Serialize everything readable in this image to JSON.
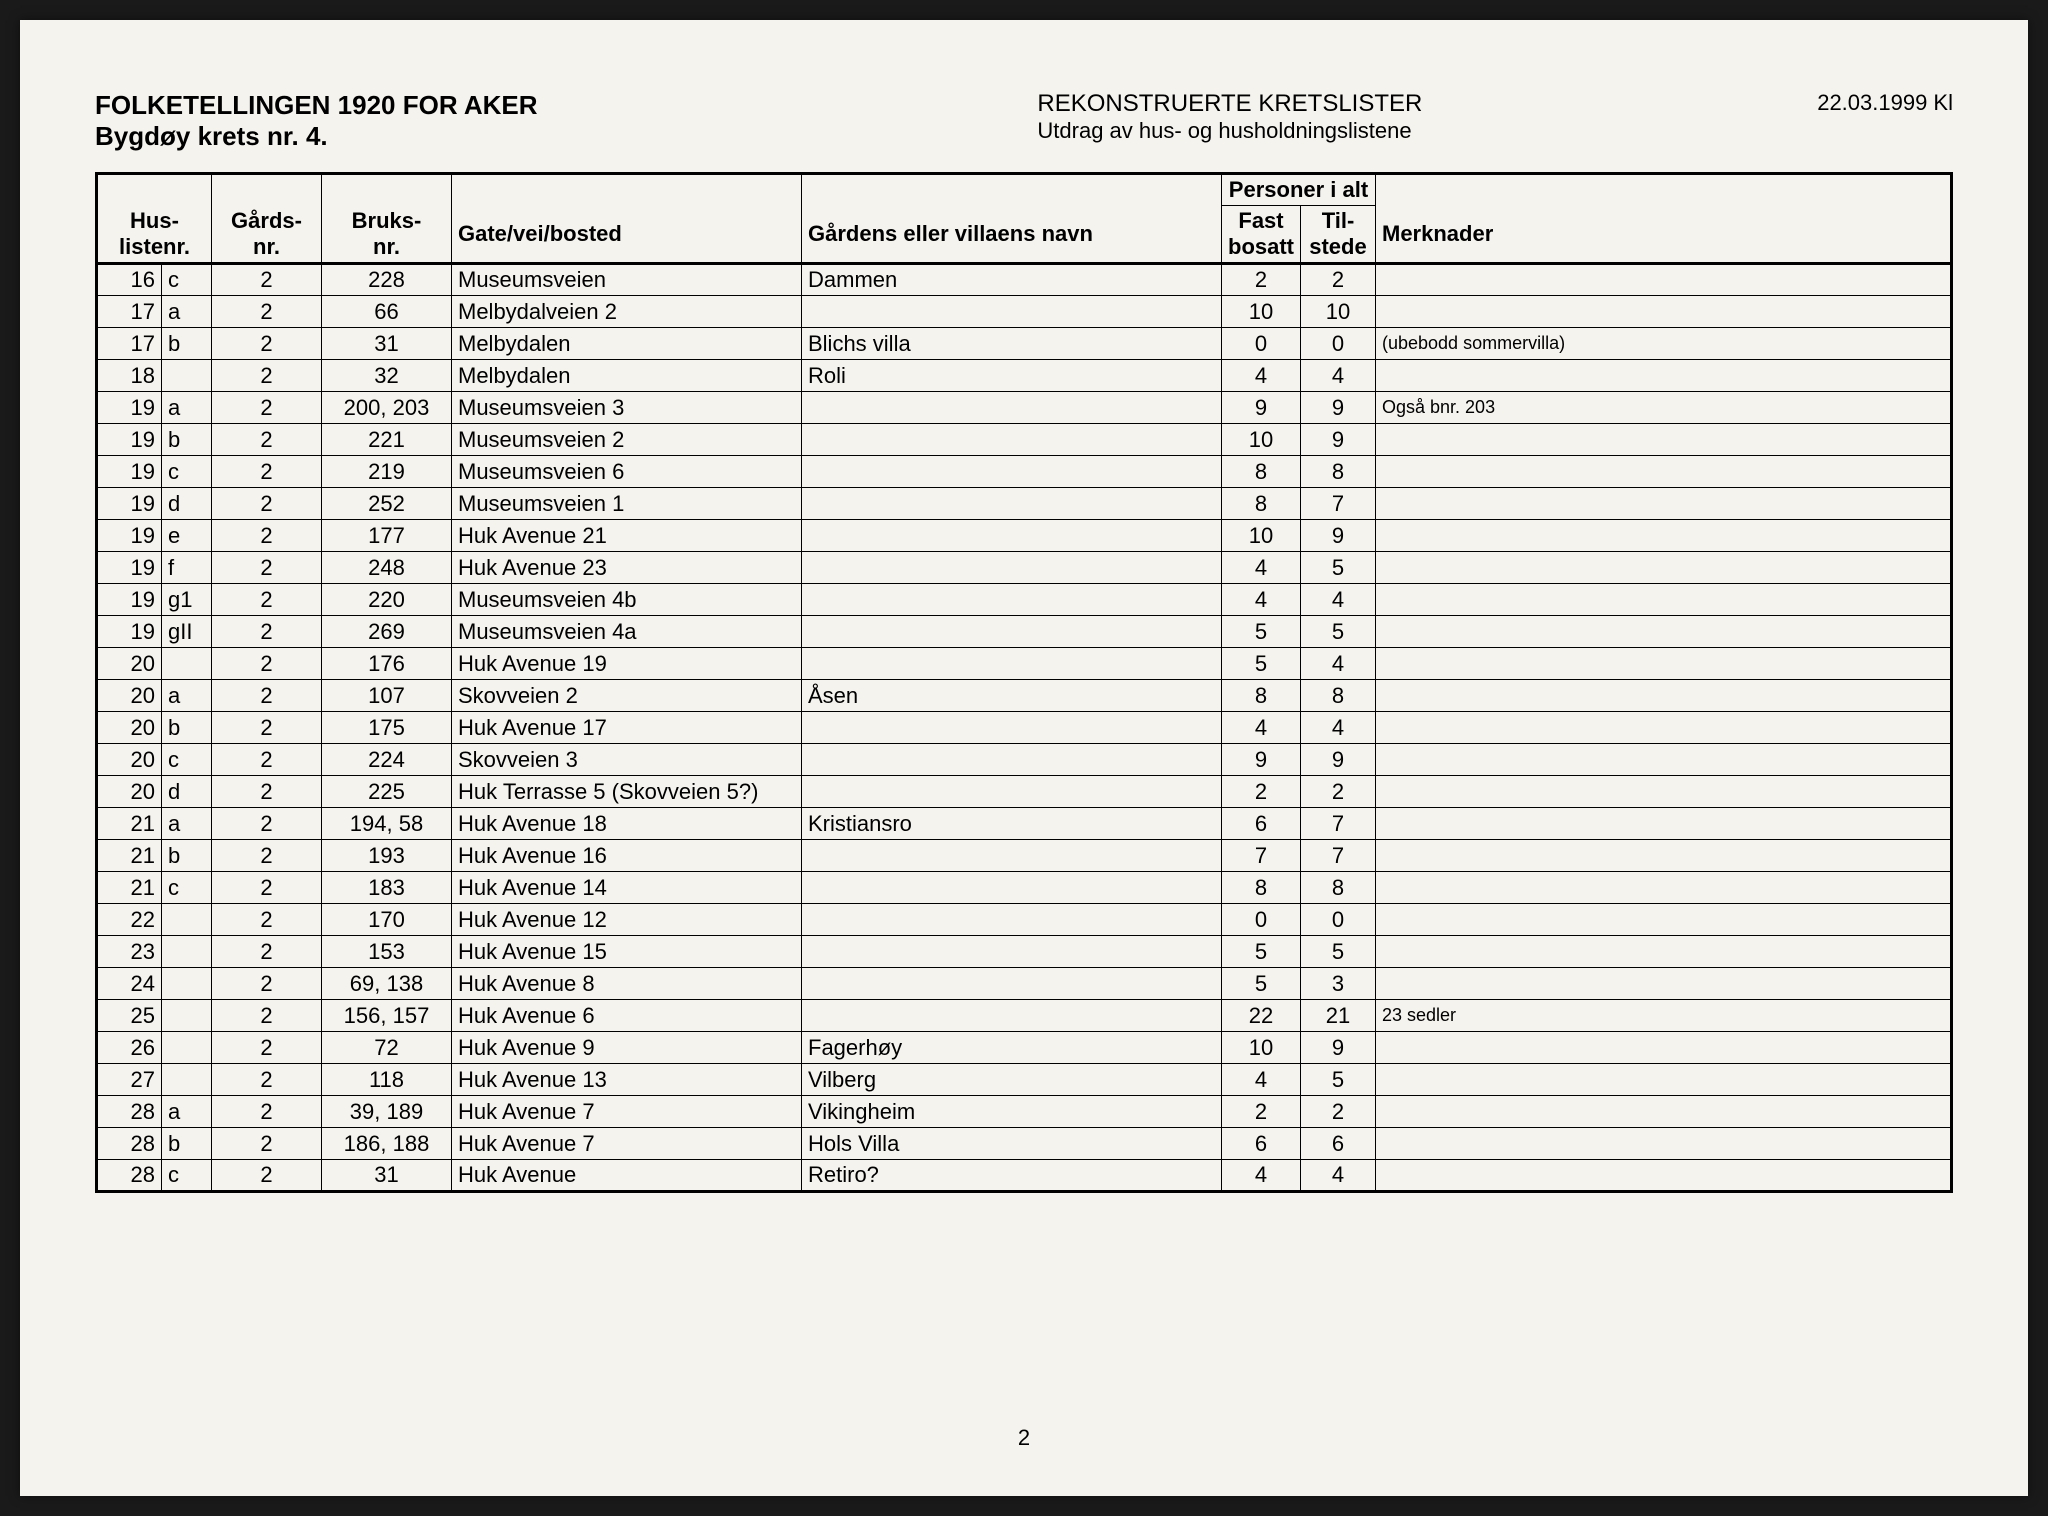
{
  "header": {
    "title_line1": "FOLKETELLINGEN 1920 FOR AKER",
    "title_line2": "Bygdøy krets nr. 4.",
    "center_line1": "REKONSTRUERTE KRETSLISTER",
    "center_line2": "Utdrag av hus- og husholdningslistene",
    "date": "22.03.1999 Kl"
  },
  "columns": {
    "huslistenr": "Hus-\nlistenr.",
    "gardsnr": "Gårds-\nnr.",
    "bruksnr": "Bruks-\nnr.",
    "gate": "Gate/vei/bosted",
    "gardnavn": "Gårdens eller villaens navn",
    "personer": "Personer i alt",
    "fast": "Fast\nbosatt",
    "til": "Til-\nstede",
    "merk": "Merknader"
  },
  "rows": [
    {
      "num": "16",
      "sub": "c",
      "gards": "2",
      "bruks": "228",
      "gate": "Museumsveien",
      "gardnavn": "Dammen",
      "fast": "2",
      "til": "2",
      "merk": ""
    },
    {
      "num": "17",
      "sub": "a",
      "gards": "2",
      "bruks": "66",
      "gate": "Melbydalveien 2",
      "gardnavn": "",
      "fast": "10",
      "til": "10",
      "merk": ""
    },
    {
      "num": "17",
      "sub": "b",
      "gards": "2",
      "bruks": "31",
      "gate": "Melbydalen",
      "gardnavn": "Blichs villa",
      "fast": "0",
      "til": "0",
      "merk": "(ubebodd sommervilla)",
      "merk_small": true
    },
    {
      "num": "18",
      "sub": "",
      "gards": "2",
      "bruks": "32",
      "gate": "Melbydalen",
      "gardnavn": "Roli",
      "fast": "4",
      "til": "4",
      "merk": ""
    },
    {
      "num": "19",
      "sub": "a",
      "gards": "2",
      "bruks": "200, 203",
      "gate": "Museumsveien 3",
      "gardnavn": "",
      "fast": "9",
      "til": "9",
      "merk": "Også bnr. 203",
      "merk_small": true
    },
    {
      "num": "19",
      "sub": "b",
      "gards": "2",
      "bruks": "221",
      "gate": "Museumsveien 2",
      "gardnavn": "",
      "fast": "10",
      "til": "9",
      "merk": ""
    },
    {
      "num": "19",
      "sub": "c",
      "gards": "2",
      "bruks": "219",
      "gate": "Museumsveien 6",
      "gardnavn": "",
      "fast": "8",
      "til": "8",
      "merk": ""
    },
    {
      "num": "19",
      "sub": "d",
      "gards": "2",
      "bruks": "252",
      "gate": "Museumsveien 1",
      "gardnavn": "",
      "fast": "8",
      "til": "7",
      "merk": ""
    },
    {
      "num": "19",
      "sub": "e",
      "gards": "2",
      "bruks": "177",
      "gate": "Huk Avenue 21",
      "gardnavn": "",
      "fast": "10",
      "til": "9",
      "merk": ""
    },
    {
      "num": "19",
      "sub": "f",
      "gards": "2",
      "bruks": "248",
      "gate": "Huk Avenue 23",
      "gardnavn": "",
      "fast": "4",
      "til": "5",
      "merk": ""
    },
    {
      "num": "19",
      "sub": "g1",
      "gards": "2",
      "bruks": "220",
      "gate": "Museumsveien 4b",
      "gardnavn": "",
      "fast": "4",
      "til": "4",
      "merk": ""
    },
    {
      "num": "19",
      "sub": "gII",
      "gards": "2",
      "bruks": "269",
      "gate": "Museumsveien 4a",
      "gardnavn": "",
      "fast": "5",
      "til": "5",
      "merk": ""
    },
    {
      "num": "20",
      "sub": "",
      "gards": "2",
      "bruks": "176",
      "gate": "Huk Avenue 19",
      "gardnavn": "",
      "fast": "5",
      "til": "4",
      "merk": ""
    },
    {
      "num": "20",
      "sub": "a",
      "gards": "2",
      "bruks": "107",
      "gate": "Skovveien 2",
      "gardnavn": "Åsen",
      "fast": "8",
      "til": "8",
      "merk": ""
    },
    {
      "num": "20",
      "sub": "b",
      "gards": "2",
      "bruks": "175",
      "gate": "Huk Avenue 17",
      "gardnavn": "",
      "fast": "4",
      "til": "4",
      "merk": ""
    },
    {
      "num": "20",
      "sub": "c",
      "gards": "2",
      "bruks": "224",
      "gate": "Skovveien 3",
      "gardnavn": "",
      "fast": "9",
      "til": "9",
      "merk": ""
    },
    {
      "num": "20",
      "sub": "d",
      "gards": "2",
      "bruks": "225",
      "gate": "Huk Terrasse 5 (Skovveien 5?)",
      "gardnavn": "",
      "fast": "2",
      "til": "2",
      "merk": ""
    },
    {
      "num": "21",
      "sub": "a",
      "gards": "2",
      "bruks": "194, 58",
      "gate": "Huk Avenue 18",
      "gardnavn": "Kristiansro",
      "fast": "6",
      "til": "7",
      "merk": ""
    },
    {
      "num": "21",
      "sub": "b",
      "gards": "2",
      "bruks": "193",
      "gate": "Huk Avenue 16",
      "gardnavn": "",
      "fast": "7",
      "til": "7",
      "merk": ""
    },
    {
      "num": "21",
      "sub": "c",
      "gards": "2",
      "bruks": "183",
      "gate": "Huk Avenue 14",
      "gardnavn": "",
      "fast": "8",
      "til": "8",
      "merk": ""
    },
    {
      "num": "22",
      "sub": "",
      "gards": "2",
      "bruks": "170",
      "gate": "Huk Avenue 12",
      "gardnavn": "",
      "fast": "0",
      "til": "0",
      "merk": ""
    },
    {
      "num": "23",
      "sub": "",
      "gards": "2",
      "bruks": "153",
      "gate": "Huk Avenue 15",
      "gardnavn": "",
      "fast": "5",
      "til": "5",
      "merk": ""
    },
    {
      "num": "24",
      "sub": "",
      "gards": "2",
      "bruks": "69, 138",
      "gate": "Huk Avenue 8",
      "gardnavn": "",
      "fast": "5",
      "til": "3",
      "merk": ""
    },
    {
      "num": "25",
      "sub": "",
      "gards": "2",
      "bruks": "156, 157",
      "gate": "Huk Avenue 6",
      "gardnavn": "",
      "fast": "22",
      "til": "21",
      "merk": "23 sedler",
      "merk_small": true
    },
    {
      "num": "26",
      "sub": "",
      "gards": "2",
      "bruks": "72",
      "gate": "Huk Avenue 9",
      "gardnavn": "Fagerhøy",
      "fast": "10",
      "til": "9",
      "merk": ""
    },
    {
      "num": "27",
      "sub": "",
      "gards": "2",
      "bruks": "118",
      "gate": "Huk Avenue 13",
      "gardnavn": "Vilberg",
      "fast": "4",
      "til": "5",
      "merk": ""
    },
    {
      "num": "28",
      "sub": "a",
      "gards": "2",
      "bruks": "39, 189",
      "gate": "Huk Avenue 7",
      "gardnavn": "Vikingheim",
      "fast": "2",
      "til": "2",
      "merk": ""
    },
    {
      "num": "28",
      "sub": "b",
      "gards": "2",
      "bruks": "186, 188",
      "gate": "Huk Avenue 7",
      "gardnavn": "Hols Villa",
      "fast": "6",
      "til": "6",
      "merk": ""
    },
    {
      "num": "28",
      "sub": "c",
      "gards": "2",
      "bruks": "31",
      "gate": "Huk Avenue",
      "gardnavn": "Retiro?",
      "fast": "4",
      "til": "4",
      "merk": ""
    }
  ],
  "page_number": "2"
}
